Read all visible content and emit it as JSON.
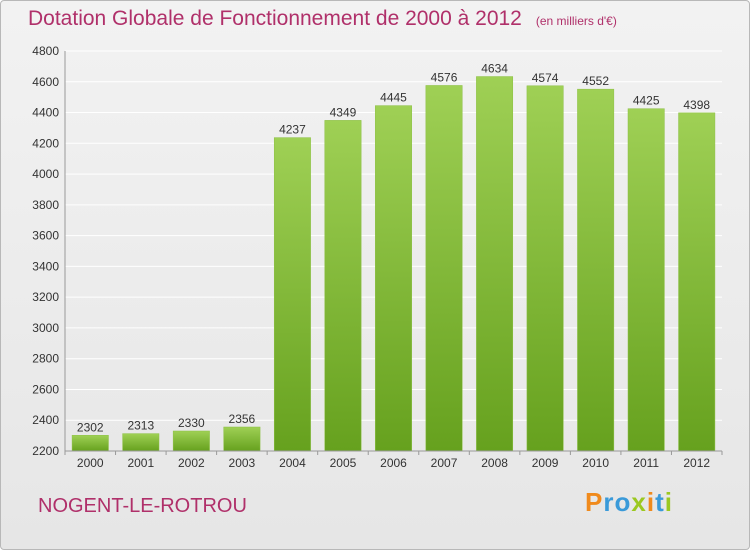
{
  "header": {
    "title": "Dotation Globale de Fonctionnement de 2000 à 2012",
    "subtitle": "(en milliers d'€)"
  },
  "footer": {
    "commune": "NOGENT-LE-ROTROU",
    "logo": "Proxiti"
  },
  "colors": {
    "title": "#b0306a",
    "bar_top": "#9fd055",
    "bar_bottom": "#66a11e",
    "grid": "#ffffff"
  },
  "chart_data": {
    "type": "bar",
    "title": "Dotation Globale de Fonctionnement de 2000 à 2012",
    "subtitle": "(en milliers d'€)",
    "xlabel": "",
    "ylabel": "",
    "categories": [
      "2000",
      "2001",
      "2002",
      "2003",
      "2004",
      "2005",
      "2006",
      "2007",
      "2008",
      "2009",
      "2010",
      "2011",
      "2012"
    ],
    "values": [
      2302,
      2313,
      2330,
      2356,
      4237,
      4349,
      4445,
      4576,
      4634,
      4574,
      4552,
      4425,
      4398
    ],
    "ylim": [
      2200,
      4800
    ],
    "yticks": [
      2200,
      2400,
      2600,
      2800,
      3000,
      3200,
      3400,
      3600,
      3800,
      4000,
      4200,
      4400,
      4600,
      4800
    ],
    "grid": true,
    "legend": "none",
    "data_labels": true
  }
}
